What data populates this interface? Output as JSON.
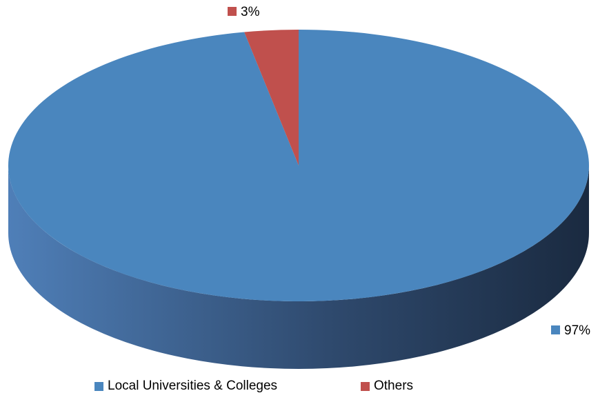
{
  "chart_data": {
    "type": "pie",
    "style": "3d",
    "title": "",
    "categories": [
      "Local Universities & Colleges",
      "Others"
    ],
    "values": [
      97,
      3
    ],
    "data_labels": [
      "97%",
      "3%"
    ],
    "colors": [
      "#4a86be",
      "#c0504d"
    ],
    "legend_position": "bottom"
  }
}
